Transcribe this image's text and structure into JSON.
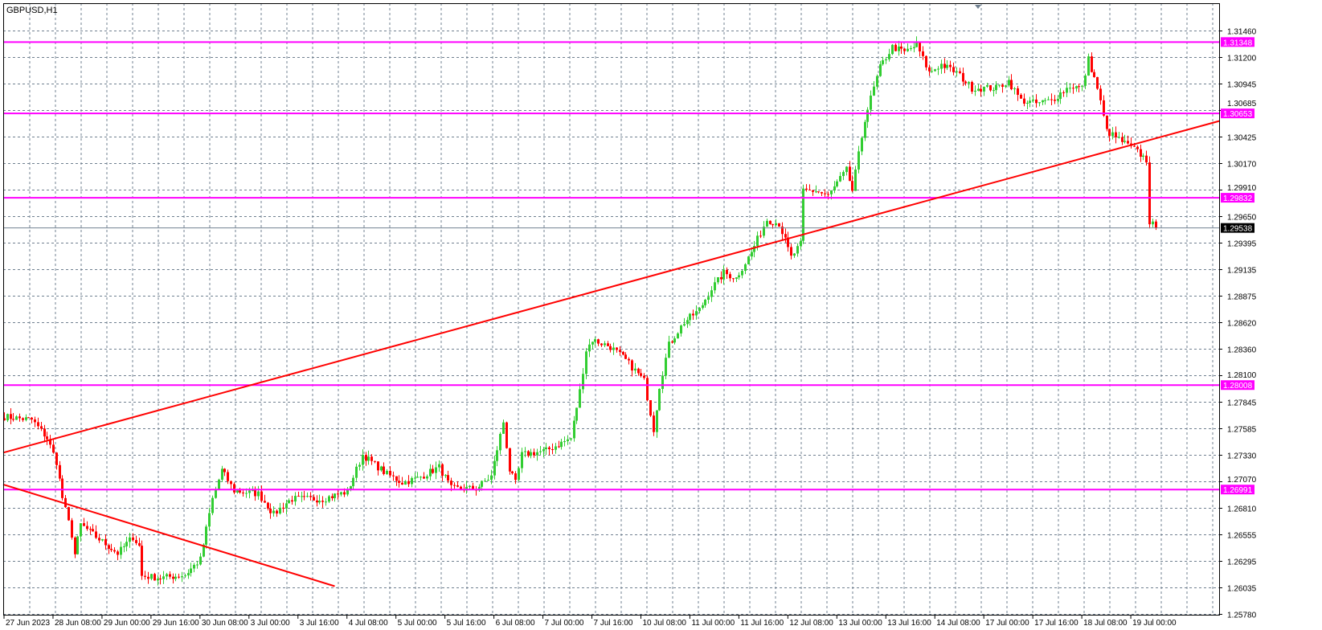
{
  "window": {
    "symbol_label": "GBPUSD,H1"
  },
  "colors": {
    "background": "#ffffff",
    "grid": "#708090",
    "bull": "#32cd32",
    "bear": "#ff0000",
    "level_line": "#ff00ff",
    "trendline": "#ff0000",
    "current_price_line": "#708090"
  },
  "chart_data": {
    "type": "candlestick",
    "symbol": "GBPUSD",
    "timeframe": "H1",
    "ylim": [
      1.2578,
      1.3146
    ],
    "grid": true,
    "price_ticks": [
      "1.31460",
      "1.31200",
      "1.30945",
      "1.30685",
      "1.30425",
      "1.30170",
      "1.29910",
      "1.29650",
      "1.29395",
      "1.29135",
      "1.28875",
      "1.28620",
      "1.28360",
      "1.28100",
      "1.27845",
      "1.27585",
      "1.27330",
      "1.27070",
      "1.26810",
      "1.26555",
      "1.26295",
      "1.26035",
      "1.25780"
    ],
    "time_ticks": [
      "27 Jun 2023",
      "28 Jun 08:00",
      "29 Jun 00:00",
      "29 Jun 16:00",
      "30 Jun 08:00",
      "3 Jul 00:00",
      "3 Jul 16:00",
      "4 Jul 08:00",
      "5 Jul 00:00",
      "5 Jul 16:00",
      "6 Jul 08:00",
      "7 Jul 00:00",
      "7 Jul 16:00",
      "10 Jul 08:00",
      "11 Jul 00:00",
      "11 Jul 16:00",
      "12 Jul 08:00",
      "13 Jul 00:00",
      "13 Jul 16:00",
      "14 Jul 08:00",
      "17 Jul 00:00",
      "17 Jul 16:00",
      "18 Jul 08:00",
      "19 Jul 00:00"
    ],
    "price_path_approx": [
      [
        "27 Jun 16:00",
        1.277
      ],
      [
        "28 Jun 01:00",
        1.2767
      ],
      [
        "28 Jun 06:00",
        1.2749
      ],
      [
        "28 Jun 09:00",
        1.2726
      ],
      [
        "28 Jun 11:00",
        1.2691
      ],
      [
        "28 Jun 14:00",
        1.2655
      ],
      [
        "28 Jun 15:00",
        1.2636
      ],
      [
        "28 Jun 17:00",
        1.2665
      ],
      [
        "28 Jun 22:00",
        1.2653
      ],
      [
        "29 Jun 05:00",
        1.2637
      ],
      [
        "29 Jun 10:00",
        1.2653
      ],
      [
        "29 Jun 12:00",
        1.2644
      ],
      [
        "29 Jun 13:00",
        1.2615
      ],
      [
        "29 Jun 19:00",
        1.2613
      ],
      [
        "30 Jun 03:00",
        1.2616
      ],
      [
        "30 Jun 08:00",
        1.2631
      ],
      [
        "30 Jun 12:00",
        1.269
      ],
      [
        "30 Jun 15:00",
        1.2718
      ],
      [
        "30 Jun 19:00",
        1.2698
      ],
      [
        "3 Jul 03:00",
        1.2695
      ],
      [
        "3 Jul 08:00",
        1.2675
      ],
      [
        "3 Jul 12:00",
        1.2686
      ],
      [
        "3 Jul 14:00",
        1.269
      ],
      [
        "4 Jul 00:00",
        1.269
      ],
      [
        "4 Jul 08:00",
        1.2697
      ],
      [
        "4 Jul 13:00",
        1.2733
      ],
      [
        "4 Jul 21:00",
        1.2714
      ],
      [
        "5 Jul 02:00",
        1.2706
      ],
      [
        "5 Jul 07:00",
        1.271
      ],
      [
        "5 Jul 14:00",
        1.2721
      ],
      [
        "5 Jul 18:00",
        1.27
      ],
      [
        "6 Jul 02:00",
        1.27
      ],
      [
        "6 Jul 07:00",
        1.2712
      ],
      [
        "6 Jul 11:00",
        1.2765
      ],
      [
        "6 Jul 13:00",
        1.2718
      ],
      [
        "6 Jul 15:00",
        1.2705
      ],
      [
        "6 Jul 17:00",
        1.2733
      ],
      [
        "7 Jul 01:00",
        1.2737
      ],
      [
        "7 Jul 09:00",
        1.2749
      ],
      [
        "7 Jul 12:00",
        1.2795
      ],
      [
        "7 Jul 14:00",
        1.2835
      ],
      [
        "7 Jul 16:00",
        1.2845
      ],
      [
        "7 Jul 22:00",
        1.2838
      ],
      [
        "10 Jul 03:00",
        1.2825
      ],
      [
        "10 Jul 09:00",
        1.2805
      ],
      [
        "10 Jul 12:00",
        1.2758
      ],
      [
        "10 Jul 14:00",
        1.28
      ],
      [
        "10 Jul 17:00",
        1.284
      ],
      [
        "10 Jul 22:00",
        1.2862
      ],
      [
        "11 Jul 03:00",
        1.2874
      ],
      [
        "11 Jul 07:00",
        1.2895
      ],
      [
        "11 Jul 11:00",
        1.291
      ],
      [
        "11 Jul 15:00",
        1.2905
      ],
      [
        "11 Jul 20:00",
        1.293
      ],
      [
        "12 Jul 01:00",
        1.2962
      ],
      [
        "12 Jul 05:00",
        1.2958
      ],
      [
        "12 Jul 09:00",
        1.2925
      ],
      [
        "12 Jul 12:00",
        1.2938
      ],
      [
        "12 Jul 13:00",
        1.299
      ],
      [
        "12 Jul 17:00",
        1.299
      ],
      [
        "12 Jul 21:00",
        1.2985
      ],
      [
        "13 Jul 03:00",
        1.301
      ],
      [
        "13 Jul 05:00",
        1.299
      ],
      [
        "13 Jul 09:00",
        1.306
      ],
      [
        "13 Jul 11:00",
        1.308
      ],
      [
        "13 Jul 14:00",
        1.311
      ],
      [
        "13 Jul 18:00",
        1.313
      ],
      [
        "13 Jul 22:00",
        1.3125
      ],
      [
        "14 Jul 02:00",
        1.3132
      ],
      [
        "14 Jul 06:00",
        1.3105
      ],
      [
        "14 Jul 10:00",
        1.3113
      ],
      [
        "14 Jul 15:00",
        1.3105
      ],
      [
        "14 Jul 20:00",
        1.309
      ],
      [
        "17 Jul 04:00",
        1.309
      ],
      [
        "17 Jul 08:00",
        1.3097
      ],
      [
        "17 Jul 12:00",
        1.3078
      ],
      [
        "17 Jul 17:00",
        1.3075
      ],
      [
        "17 Jul 22:00",
        1.3078
      ],
      [
        "18 Jul 04:00",
        1.3092
      ],
      [
        "18 Jul 08:00",
        1.309
      ],
      [
        "18 Jul 10:00",
        1.3118
      ],
      [
        "18 Jul 13:00",
        1.309
      ],
      [
        "18 Jul 16:00",
        1.3048
      ],
      [
        "18 Jul 21:00",
        1.3038
      ],
      [
        "19 Jul 02:00",
        1.3028
      ],
      [
        "19 Jul 05:00",
        1.302
      ],
      [
        "19 Jul 06:00",
        1.296
      ],
      [
        "19 Jul 08:00",
        1.29538
      ]
    ],
    "horizontal_levels": [
      "1.31348",
      "1.30653",
      "1.29832",
      "1.28008",
      "1.26991"
    ],
    "current_price": "1.29538",
    "trendlines": [
      {
        "from": [
          "27 Jun 16:00",
          1.2735
        ],
        "to": [
          "20 Jul 05:00",
          1.3058
        ]
      },
      {
        "from": [
          "27 Jun 16:00",
          1.2704
        ],
        "to": [
          "4 Jul 04:00",
          1.2605
        ]
      }
    ]
  }
}
